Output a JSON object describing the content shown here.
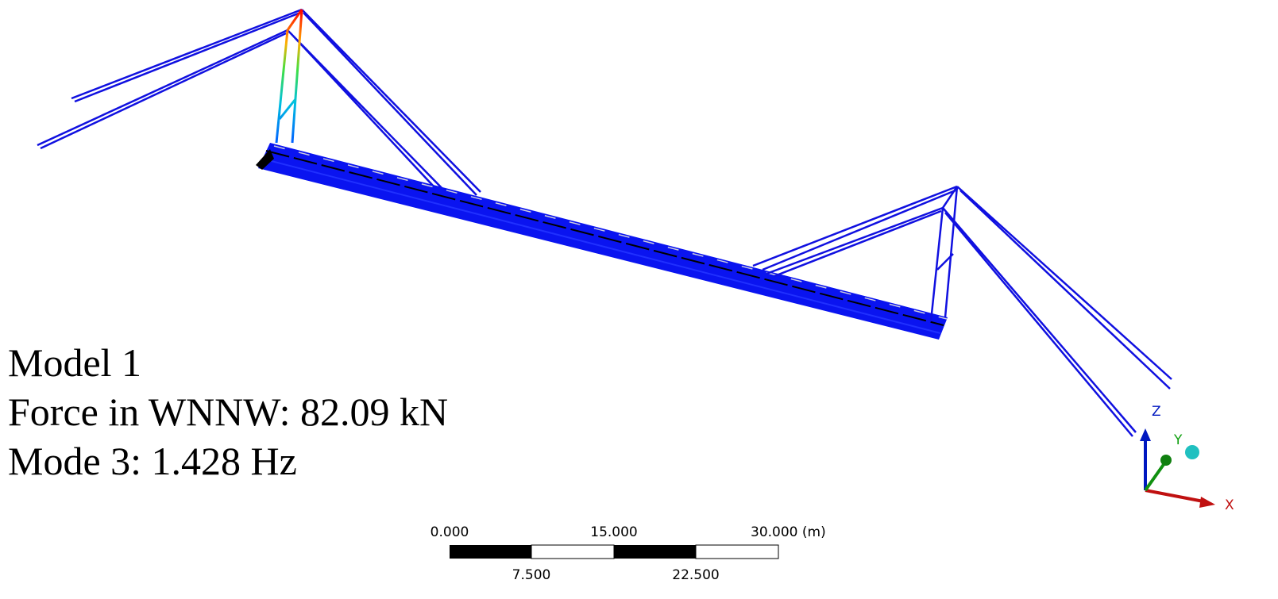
{
  "annotation": {
    "lines": [
      "Model 1",
      "Force in WNNW: 82.09 kN",
      "Mode 3: 1.428 Hz"
    ]
  },
  "scale_bar": {
    "top_labels": [
      "0.000",
      "15.000",
      "30.000 (m)"
    ],
    "bottom_labels": [
      "7.500",
      "22.500"
    ]
  },
  "triad": {
    "z": "Z",
    "y": "Y",
    "x": "X"
  }
}
